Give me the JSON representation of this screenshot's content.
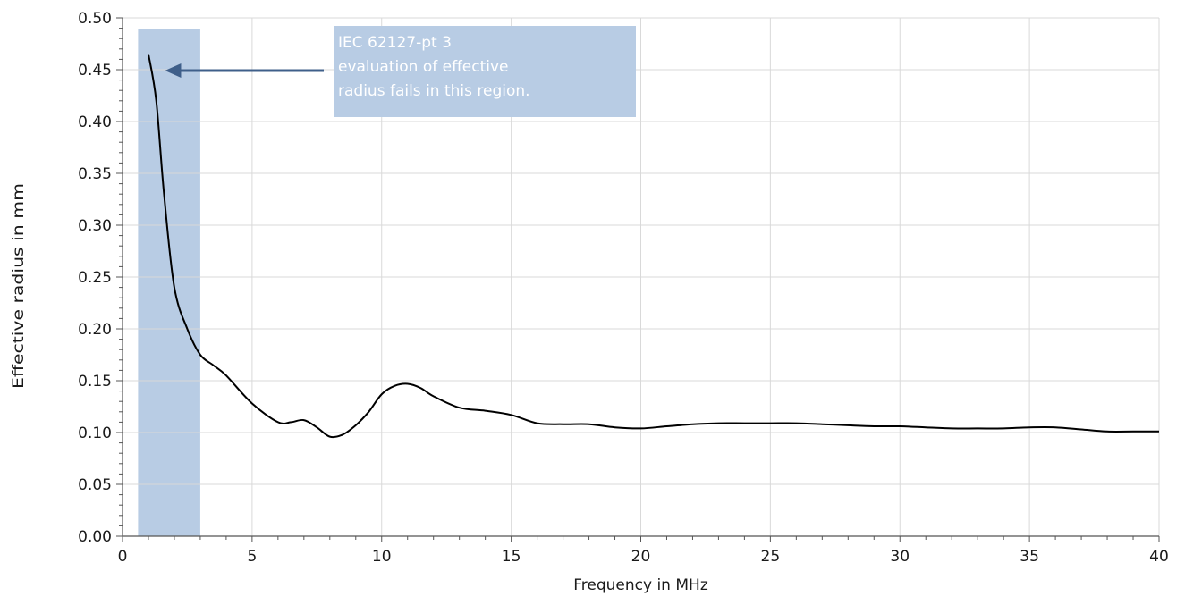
{
  "chart_data": {
    "type": "line",
    "title": "",
    "xlabel": "Frequency in MHz",
    "ylabel": "Effective radius in mm",
    "xlim": [
      0,
      40
    ],
    "ylim": [
      0,
      0.5
    ],
    "x_ticks": [
      0,
      5,
      10,
      15,
      20,
      25,
      30,
      35,
      40
    ],
    "y_ticks": [
      0,
      0.05,
      0.1,
      0.15,
      0.2,
      0.25,
      0.3,
      0.35,
      0.4,
      0.45,
      0.5
    ],
    "x_tick_labels": [
      "0",
      "5",
      "10",
      "15",
      "20",
      "25",
      "30",
      "35",
      "40"
    ],
    "y_tick_labels": [
      "0.00",
      "0.05",
      "0.10",
      "0.15",
      "0.20",
      "0.25",
      "0.30",
      "0.35",
      "0.40",
      "0.45",
      "0.50"
    ],
    "grid": true,
    "series": [
      {
        "color": "#000000",
        "x": [
          1.0,
          1.3,
          1.6,
          2.0,
          2.5,
          3.0,
          3.5,
          4.0,
          5.0,
          6.0,
          6.5,
          7.0,
          7.5,
          8.0,
          8.5,
          9.0,
          9.5,
          10.0,
          10.5,
          11.0,
          11.5,
          12.0,
          13.0,
          14.0,
          15.0,
          16.0,
          17.0,
          18.0,
          19.0,
          20.0,
          21.0,
          22.0,
          23.0,
          24.0,
          25.0,
          26.0,
          27.0,
          28.0,
          29.0,
          30.0,
          31.0,
          32.0,
          33.0,
          34.0,
          35.0,
          36.0,
          37.0,
          38.0,
          39.0,
          40.0
        ],
        "y": [
          0.465,
          0.42,
          0.33,
          0.24,
          0.2,
          0.175,
          0.165,
          0.155,
          0.128,
          0.11,
          0.11,
          0.112,
          0.105,
          0.096,
          0.098,
          0.107,
          0.12,
          0.137,
          0.145,
          0.147,
          0.143,
          0.135,
          0.124,
          0.121,
          0.117,
          0.109,
          0.108,
          0.108,
          0.105,
          0.104,
          0.106,
          0.108,
          0.109,
          0.109,
          0.109,
          0.109,
          0.108,
          0.107,
          0.106,
          0.106,
          0.105,
          0.104,
          0.104,
          0.104,
          0.105,
          0.105,
          0.103,
          0.101,
          0.101,
          0.101
        ]
      }
    ],
    "shaded_region": {
      "x_start": 0.6,
      "x_end": 3.0,
      "color": "#b8cce4"
    },
    "annotation": {
      "lines": [
        "IEC 62127-pt 3",
        "evaluation of effective",
        "radius fails in this region."
      ],
      "box_color": "#b8cce4",
      "arrow_color": "#3f5f8a",
      "points_to": {
        "x": 1.5,
        "y": 0.45
      }
    }
  }
}
